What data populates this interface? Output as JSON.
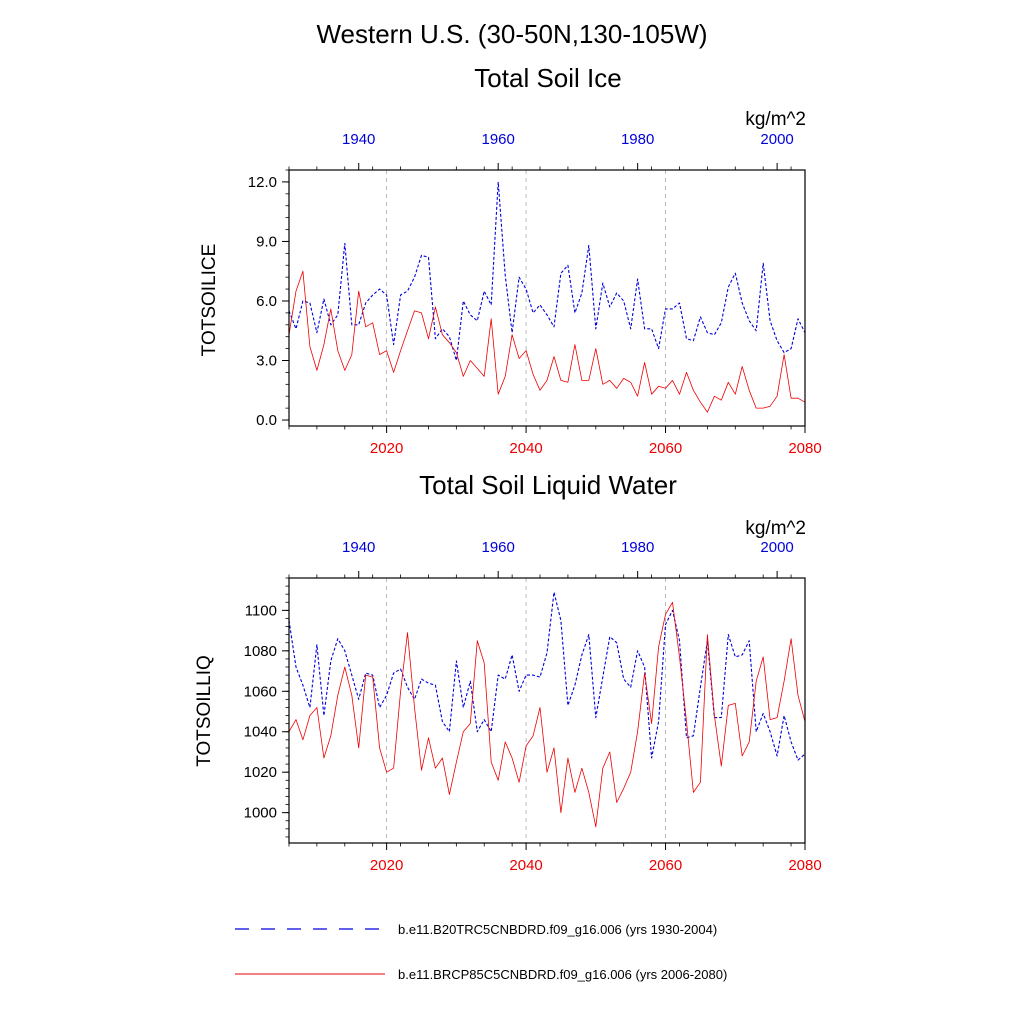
{
  "header": {
    "region_title": "Western U.S. (30-50N,130-105W)"
  },
  "colors": {
    "hist": "#0000dd",
    "rcp": "#ee0000",
    "grid": "#aaaaaa"
  },
  "legend": {
    "hist": "b.e11.B20TRC5CNBDRD.f09_g16.006 (yrs 1930-2004)",
    "rcp": "b.e11.BRCP85C5CNBDRD.f09_g16.006 (yrs 2006-2080)"
  },
  "chart_data": [
    {
      "type": "line",
      "title": "Total Soil Ice",
      "ylabel": "TOTSOILICE",
      "units": "kg/m^2",
      "ylim": [
        -0.3,
        12.6
      ],
      "yticks": [
        0,
        3,
        6,
        9,
        12
      ],
      "ytick_labels": [
        "0.0",
        "3.0",
        "6.0",
        "9.0",
        "12.0"
      ],
      "grid": "vertical dashed at bottom-axis ticks",
      "bottom_axis": {
        "xlim": [
          2006,
          2080
        ],
        "ticks": [
          2020,
          2040,
          2060,
          2080
        ],
        "tick_labels": [
          "2020",
          "2040",
          "2060",
          "2080"
        ]
      },
      "top_axis": {
        "xlim": [
          1930,
          2004
        ],
        "ticks": [
          1940,
          1960,
          1980,
          2000
        ],
        "tick_labels": [
          "1940",
          "1960",
          "1980",
          "2000"
        ]
      },
      "series": [
        {
          "name": "b.e11.B20TRC5CNBDRD.f09_g16.006 (yrs 1930-2004)",
          "axis": "top",
          "style": "dashed",
          "x": [
            1930,
            1931,
            1932,
            1933,
            1934,
            1935,
            1936,
            1937,
            1938,
            1939,
            1940,
            1941,
            1942,
            1943,
            1944,
            1945,
            1946,
            1947,
            1948,
            1949,
            1950,
            1951,
            1952,
            1953,
            1954,
            1955,
            1956,
            1957,
            1958,
            1959,
            1960,
            1961,
            1962,
            1963,
            1964,
            1965,
            1966,
            1967,
            1968,
            1969,
            1970,
            1971,
            1972,
            1973,
            1974,
            1975,
            1976,
            1977,
            1978,
            1979,
            1980,
            1981,
            1982,
            1983,
            1984,
            1985,
            1986,
            1987,
            1988,
            1989,
            1990,
            1991,
            1992,
            1993,
            1994,
            1995,
            1996,
            1997,
            1998,
            1999,
            2000,
            2001,
            2002,
            2003,
            2004
          ],
          "values": [
            5.5,
            4.6,
            6.0,
            5.9,
            4.4,
            6.1,
            4.8,
            5.3,
            8.9,
            4.8,
            4.8,
            5.9,
            6.3,
            6.6,
            6.3,
            3.8,
            6.3,
            6.5,
            7.2,
            8.3,
            8.2,
            4.1,
            4.6,
            4.2,
            3.0,
            6.0,
            5.3,
            5.0,
            6.5,
            5.8,
            12.0,
            7.3,
            4.4,
            7.2,
            6.6,
            5.4,
            5.8,
            5.3,
            4.7,
            7.4,
            7.8,
            5.4,
            6.4,
            8.8,
            4.6,
            6.9,
            5.7,
            6.4,
            6.0,
            4.6,
            7.1,
            4.6,
            4.6,
            3.6,
            5.6,
            5.6,
            5.9,
            4.1,
            4.0,
            5.2,
            4.4,
            4.3,
            4.9,
            6.7,
            7.4,
            5.9,
            5.0,
            4.5,
            7.9,
            5.0,
            4.0,
            3.4,
            3.6,
            5.1,
            4.4
          ]
        },
        {
          "name": "b.e11.BRCP85C5CNBDRD.f09_g16.006 (yrs 2006-2080)",
          "axis": "bottom",
          "style": "solid",
          "x": [
            2006,
            2007,
            2008,
            2009,
            2010,
            2011,
            2012,
            2013,
            2014,
            2015,
            2016,
            2017,
            2018,
            2019,
            2020,
            2021,
            2022,
            2023,
            2024,
            2025,
            2026,
            2027,
            2028,
            2029,
            2030,
            2031,
            2032,
            2033,
            2034,
            2035,
            2036,
            2037,
            2038,
            2039,
            2040,
            2041,
            2042,
            2043,
            2044,
            2045,
            2046,
            2047,
            2048,
            2049,
            2050,
            2051,
            2052,
            2053,
            2054,
            2055,
            2056,
            2057,
            2058,
            2059,
            2060,
            2061,
            2062,
            2063,
            2064,
            2065,
            2066,
            2067,
            2068,
            2069,
            2070,
            2071,
            2072,
            2073,
            2074,
            2075,
            2076,
            2077,
            2078,
            2079,
            2080
          ],
          "values": [
            4.3,
            6.5,
            7.5,
            3.7,
            2.5,
            3.8,
            5.6,
            3.5,
            2.5,
            3.3,
            6.5,
            4.7,
            4.9,
            3.3,
            3.5,
            2.4,
            3.5,
            4.5,
            5.5,
            5.4,
            4.1,
            5.7,
            4.3,
            3.9,
            3.4,
            2.2,
            3.0,
            2.6,
            2.2,
            5.1,
            1.3,
            2.2,
            4.3,
            3.1,
            3.5,
            2.3,
            1.5,
            2.0,
            3.2,
            2.0,
            1.9,
            3.8,
            2.0,
            2.0,
            3.6,
            1.8,
            2.0,
            1.6,
            2.1,
            1.9,
            1.2,
            2.9,
            1.3,
            1.7,
            1.6,
            2.0,
            1.3,
            2.4,
            1.5,
            0.9,
            0.4,
            1.2,
            1.0,
            1.9,
            1.3,
            2.7,
            1.5,
            0.6,
            0.6,
            0.7,
            1.2,
            3.3,
            1.1,
            1.1,
            0.9
          ]
        }
      ]
    },
    {
      "type": "line",
      "title": "Total Soil Liquid Water",
      "ylabel": "TOTSOILLIQ",
      "units": "kg/m^2",
      "ylim": [
        985,
        1116
      ],
      "yticks": [
        1000,
        1020,
        1040,
        1060,
        1080,
        1100
      ],
      "ytick_labels": [
        "1000",
        "1020",
        "1040",
        "1060",
        "1080",
        "1100"
      ],
      "grid": "vertical dashed at bottom-axis ticks",
      "bottom_axis": {
        "xlim": [
          2006,
          2080
        ],
        "ticks": [
          2020,
          2040,
          2060,
          2080
        ],
        "tick_labels": [
          "2020",
          "2040",
          "2060",
          "2080"
        ]
      },
      "top_axis": {
        "xlim": [
          1930,
          2004
        ],
        "ticks": [
          1940,
          1960,
          1980,
          2000
        ],
        "tick_labels": [
          "1940",
          "1960",
          "1980",
          "2000"
        ]
      },
      "series": [
        {
          "name": "b.e11.B20TRC5CNBDRD.f09_g16.006 (yrs 1930-2004)",
          "axis": "top",
          "style": "dashed",
          "x": [
            1930,
            1931,
            1932,
            1933,
            1934,
            1935,
            1936,
            1937,
            1938,
            1939,
            1940,
            1941,
            1942,
            1943,
            1944,
            1945,
            1946,
            1947,
            1948,
            1949,
            1950,
            1951,
            1952,
            1953,
            1954,
            1955,
            1956,
            1957,
            1958,
            1959,
            1960,
            1961,
            1962,
            1963,
            1964,
            1965,
            1966,
            1967,
            1968,
            1969,
            1970,
            1971,
            1972,
            1973,
            1974,
            1975,
            1976,
            1977,
            1978,
            1979,
            1980,
            1981,
            1982,
            1983,
            1984,
            1985,
            1986,
            1987,
            1988,
            1989,
            1990,
            1991,
            1992,
            1993,
            1994,
            1995,
            1996,
            1997,
            1998,
            1999,
            2000,
            2001,
            2002,
            2003,
            2004
          ],
          "values": [
            1095,
            1072,
            1063,
            1052,
            1083,
            1048,
            1075,
            1086,
            1080,
            1068,
            1056,
            1069,
            1068,
            1052,
            1058,
            1069,
            1071,
            1062,
            1056,
            1066,
            1064,
            1063,
            1045,
            1040,
            1075,
            1052,
            1065,
            1040,
            1046,
            1040,
            1068,
            1066,
            1078,
            1060,
            1068,
            1068,
            1067,
            1079,
            1109,
            1095,
            1053,
            1063,
            1078,
            1088,
            1047,
            1067,
            1087,
            1084,
            1066,
            1062,
            1080,
            1072,
            1027,
            1045,
            1093,
            1100,
            1085,
            1037,
            1038,
            1062,
            1085,
            1047,
            1047,
            1088,
            1077,
            1078,
            1085,
            1040,
            1049,
            1040,
            1028,
            1048,
            1035,
            1026,
            1029
          ]
        },
        {
          "name": "b.e11.BRCP85C5CNBDRD.f09_g16.006 (yrs 2006-2080)",
          "axis": "bottom",
          "style": "solid",
          "x": [
            2006,
            2007,
            2008,
            2009,
            2010,
            2011,
            2012,
            2013,
            2014,
            2015,
            2016,
            2017,
            2018,
            2019,
            2020,
            2021,
            2022,
            2023,
            2024,
            2025,
            2026,
            2027,
            2028,
            2029,
            2030,
            2031,
            2032,
            2033,
            2034,
            2035,
            2036,
            2037,
            2038,
            2039,
            2040,
            2041,
            2042,
            2043,
            2044,
            2045,
            2046,
            2047,
            2048,
            2049,
            2050,
            2051,
            2052,
            2053,
            2054,
            2055,
            2056,
            2057,
            2058,
            2059,
            2060,
            2061,
            2062,
            2063,
            2064,
            2065,
            2066,
            2067,
            2068,
            2069,
            2070,
            2071,
            2072,
            2073,
            2074,
            2075,
            2076,
            2077,
            2078,
            2079,
            2080
          ],
          "values": [
            1040,
            1046,
            1036,
            1048,
            1052,
            1027,
            1038,
            1058,
            1072,
            1058,
            1032,
            1068,
            1067,
            1032,
            1020,
            1022,
            1060,
            1089,
            1052,
            1021,
            1037,
            1022,
            1027,
            1009,
            1025,
            1040,
            1044,
            1085,
            1074,
            1025,
            1016,
            1035,
            1027,
            1015,
            1033,
            1038,
            1052,
            1020,
            1032,
            1000,
            1027,
            1010,
            1022,
            1010,
            993,
            1022,
            1030,
            1005,
            1012,
            1020,
            1040,
            1069,
            1044,
            1082,
            1098,
            1104,
            1077,
            1045,
            1010,
            1015,
            1088,
            1048,
            1023,
            1053,
            1054,
            1028,
            1035,
            1065,
            1077,
            1046,
            1047,
            1065,
            1086,
            1058,
            1045
          ]
        }
      ]
    }
  ]
}
